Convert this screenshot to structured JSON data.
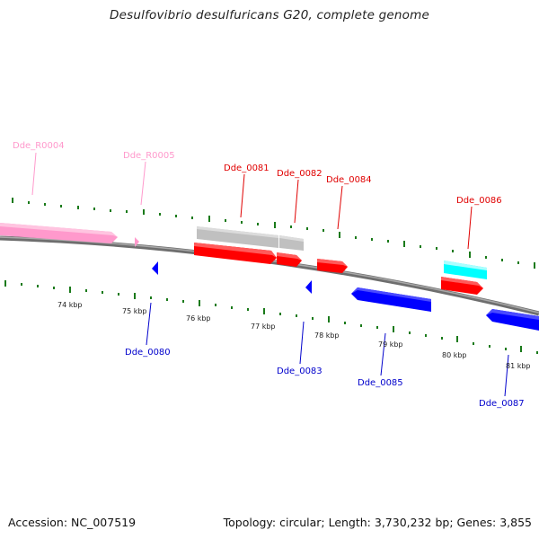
{
  "title": "Desulfovibrio desulfuricans G20, complete genome",
  "footer": {
    "accession": "Accession: NC_007519",
    "summary": "Topology: circular; Length: 3,730,232 bp; Genes: 3,855"
  },
  "colors": {
    "background": "#ffffff",
    "backbone": "#808080",
    "tick": "#1a7a1a",
    "label_dark": "#222222",
    "rna_gene": "#ff99cc",
    "forward_gene": "#ff0000",
    "reverse_gene": "#0000ff",
    "pseudo_gene": "#c0c0c0",
    "other_gene": "#00ffff"
  },
  "scale_labels": [
    "74 kbp",
    "75 kbp",
    "76 kbp",
    "77 kbp",
    "78 kbp",
    "79 kbp",
    "80 kbp",
    "81 kbp"
  ],
  "gene_labels": {
    "upper": [
      {
        "id": "Dde_R0004",
        "color": "#ff99cc"
      },
      {
        "id": "Dde_R0005",
        "color": "#ff99cc"
      },
      {
        "id": "Dde_0081",
        "color": "#e00000"
      },
      {
        "id": "Dde_0082",
        "color": "#e00000"
      },
      {
        "id": "Dde_0084",
        "color": "#e00000"
      },
      {
        "id": "Dde_0086",
        "color": "#e00000"
      }
    ],
    "lower": [
      {
        "id": "Dde_0080",
        "color": "#0000cc"
      },
      {
        "id": "Dde_0083",
        "color": "#0000cc"
      },
      {
        "id": "Dde_0085",
        "color": "#0000cc"
      },
      {
        "id": "Dde_0087",
        "color": "#0000cc"
      }
    ]
  }
}
